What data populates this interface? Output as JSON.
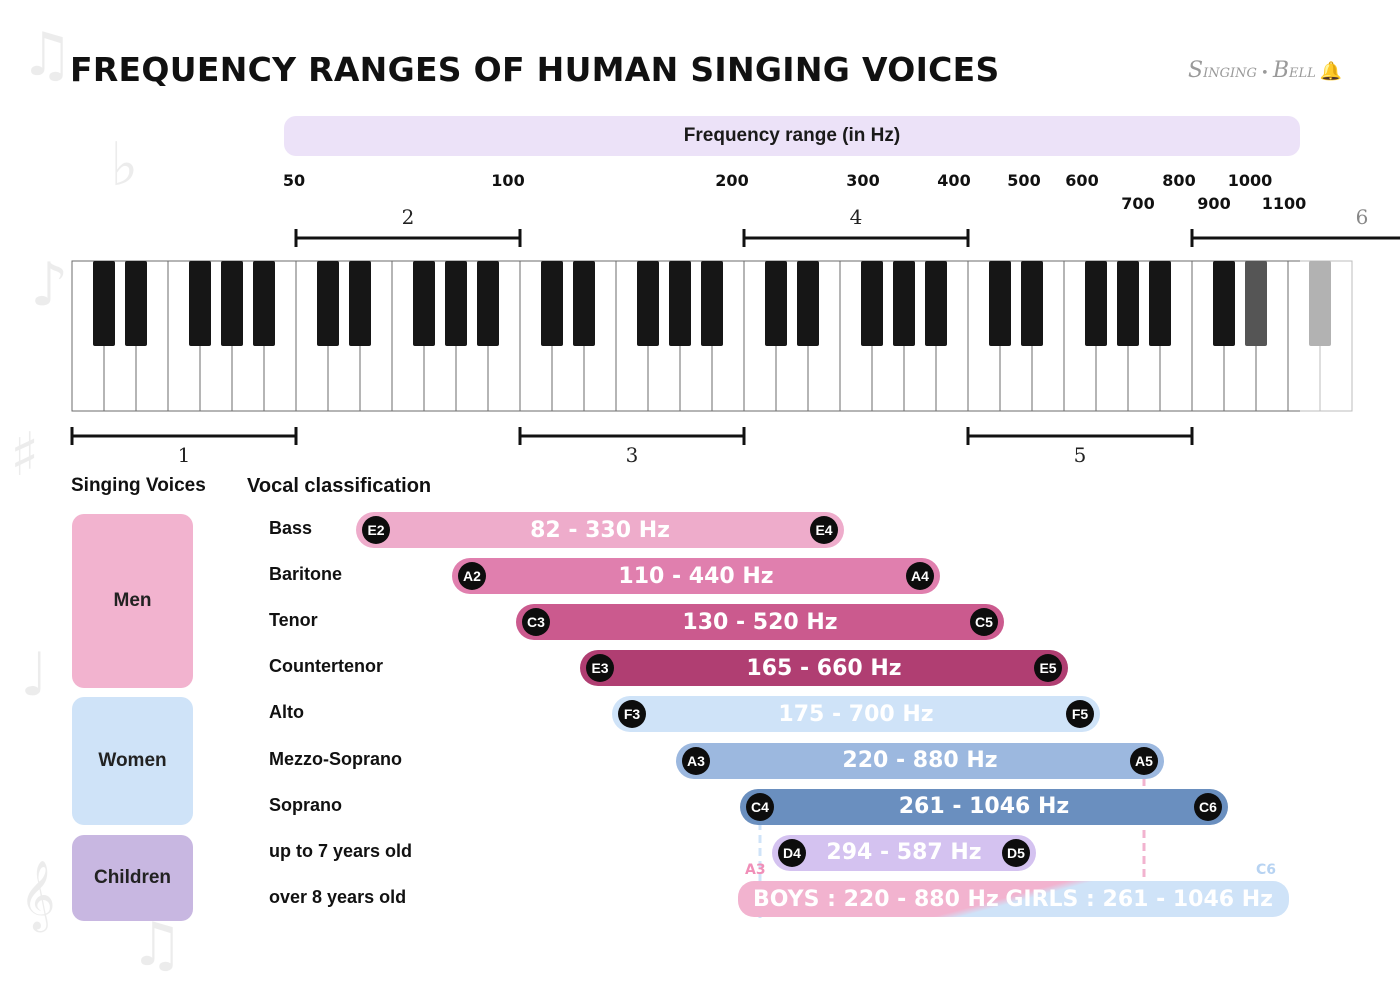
{
  "title": "FREQUENCY RANGES OF HUMAN SINGING VOICES",
  "logo": {
    "part1": "S",
    "part2": "INGING",
    "part3": "B",
    "part4": "ELL"
  },
  "headers": {
    "singing_voices": "Singing Voices",
    "vocal_classification": "Vocal classification"
  },
  "groups": [
    {
      "label": "Men",
      "color": "#f2b3cf"
    },
    {
      "label": "Women",
      "color": "#cfe3f8"
    },
    {
      "label": "Children",
      "color": "#c8b7e1"
    }
  ],
  "colors": {
    "boys": "#f2b3cf",
    "girls": "#cfe3f8",
    "frequency_band": "#ece2f8",
    "badge": "#0d0d0d"
  },
  "chart_data": {
    "type": "bar",
    "title": "FREQUENCY RANGES OF HUMAN SINGING VOICES",
    "axis_label": "Frequency range (in Hz)",
    "frequency_ticks": [
      "50",
      "100",
      "200",
      "300",
      "400",
      "500",
      "600",
      "700",
      "800",
      "900",
      "1000",
      "1100"
    ],
    "octaves": [
      "1",
      "2",
      "3",
      "4",
      "5",
      "6"
    ],
    "series": [
      {
        "name": "Bass",
        "group": "Men",
        "low_note": "E2",
        "high_note": "E4",
        "low_hz": 82,
        "high_hz": 330,
        "label": "82 - 330 Hz",
        "color": "#eeaccb"
      },
      {
        "name": "Baritone",
        "group": "Men",
        "low_note": "A2",
        "high_note": "A4",
        "low_hz": 110,
        "high_hz": 440,
        "label": "110 - 440 Hz",
        "color": "#e07fae"
      },
      {
        "name": "Tenor",
        "group": "Men",
        "low_note": "C3",
        "high_note": "C5",
        "low_hz": 130,
        "high_hz": 520,
        "label": "130 - 520 Hz",
        "color": "#cb5a8e"
      },
      {
        "name": "Countertenor",
        "group": "Men",
        "low_note": "E3",
        "high_note": "E5",
        "low_hz": 165,
        "high_hz": 660,
        "label": "165 - 660 Hz",
        "color": "#b03e72"
      },
      {
        "name": "Alto",
        "group": "Women",
        "low_note": "F3",
        "high_note": "F5",
        "low_hz": 175,
        "high_hz": 700,
        "label": "175 - 700 Hz",
        "color": "#cfe3f8"
      },
      {
        "name": "Mezzo-Soprano",
        "group": "Women",
        "low_note": "A3",
        "high_note": "A5",
        "low_hz": 220,
        "high_hz": 880,
        "label": "220 - 880 Hz",
        "color": "#9cb8df"
      },
      {
        "name": "Soprano",
        "group": "Women",
        "low_note": "C4",
        "high_note": "C6",
        "low_hz": 261,
        "high_hz": 1046,
        "label": "261 - 1046 Hz",
        "color": "#6a8fbf"
      },
      {
        "name": "up to 7 years old",
        "group": "Children",
        "low_note": "D4",
        "high_note": "D5",
        "low_hz": 294,
        "high_hz": 587,
        "label": "294 - 587 Hz",
        "color": "#d4c2f0"
      }
    ],
    "over8": {
      "name": "over 8 years old",
      "group": "Children",
      "boys_label": "BOYS : 220 - 880 Hz",
      "girls_label": "GIRLS : 261 - 1046 Hz",
      "boys_low_note": "A3",
      "girls_high_note": "C6",
      "boys_low_hz": 220,
      "boys_high_hz": 880,
      "girls_low_hz": 261,
      "girls_high_hz": 1046
    }
  }
}
